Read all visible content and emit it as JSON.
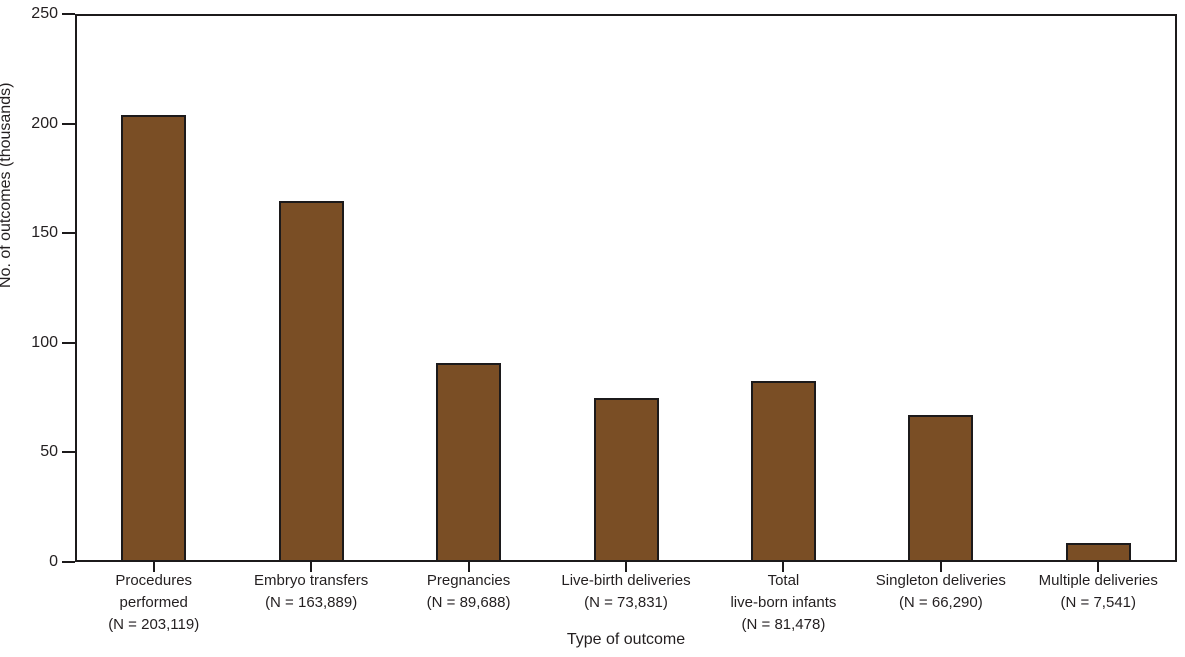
{
  "chart_data": {
    "type": "bar",
    "title": "",
    "xlabel": "Type of outcome",
    "ylabel": "No. of outcomes (thousands)",
    "ylim": [
      0,
      250
    ],
    "yticks": [
      0,
      50,
      100,
      150,
      200,
      250
    ],
    "grid": false,
    "legend": "none",
    "bar_color": "#7A4E25",
    "bar_edge_color": "#1c1a1b",
    "categories": [
      "Procedures performed",
      "Embryo transfers",
      "Pregnancies",
      "Live-birth deliveries",
      "Total live-born infants",
      "Singleton deliveries",
      "Multiple deliveries"
    ],
    "category_label_lines": [
      [
        "Procedures",
        "performed",
        "(N = 203,119)"
      ],
      [
        "Embryo transfers",
        "(N = 163,889)"
      ],
      [
        "Pregnancies",
        "(N = 89,688)"
      ],
      [
        "Live-birth deliveries",
        "(N = 73,831)"
      ],
      [
        "Total",
        "live-born infants",
        "(N = 81,478)"
      ],
      [
        "Singleton deliveries",
        "(N = 66,290)"
      ],
      [
        "Multiple deliveries",
        "(N = 7,541)"
      ]
    ],
    "counts": [
      203119,
      163889,
      89688,
      73831,
      81478,
      66290,
      7541
    ],
    "values": [
      203.119,
      163.889,
      89.688,
      73.831,
      81.478,
      66.29,
      7.541
    ]
  }
}
